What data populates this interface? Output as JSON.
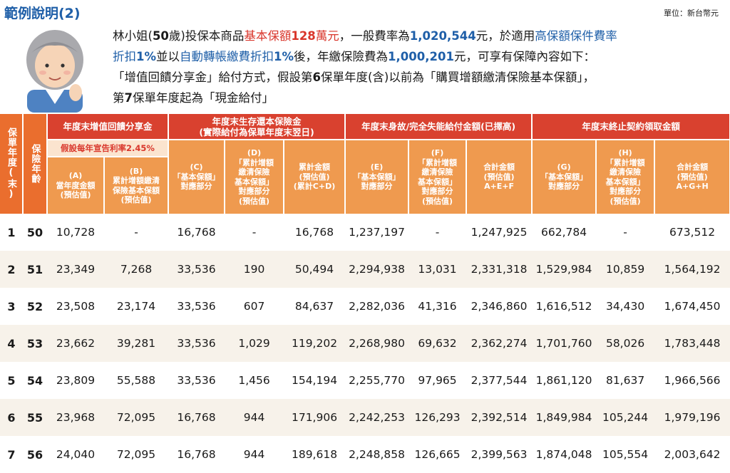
{
  "header": {
    "title": "範例說明(2)",
    "unit": "單位：新台幣元"
  },
  "intro": {
    "p1": "林小姐(",
    "age": "50",
    "p2": "歲)投保本商品",
    "red1": "基本保額",
    "amount": "128",
    "red2": "萬元",
    "p3": "，一般費率為",
    "rate_amount": "1,020,544",
    "p4": "元，於適用",
    "blue1": "高保額保件費率",
    "line2_a": "折扣",
    "pct1": "1%",
    "line2_b": "並以",
    "blue2": "自動轉帳繳費折扣",
    "pct2": "1%",
    "line2_c": "後，年繳保險費為",
    "premium": "1,000,201",
    "line2_d": "元，可享有保障內容如下：",
    "line3_a": "「增值回饋分享金」給付方式，假設第",
    "yr6": "6",
    "line3_b": "保單年度(含)以前為「購買增額繳清保險基本保額」，",
    "line4_a": "第",
    "yr7": "7",
    "line4_b": "保單年度起為「現金給付」"
  },
  "table": {
    "side_headers": {
      "year": "保單年度(末)",
      "age": "保險年齡"
    },
    "groups": {
      "g1": "年度末增值回饋分享金",
      "g2_line1": "年度末生存還本保險金",
      "g2_line2": "(實際給付為保單年度末翌日)",
      "g3": "年度末身故/完全失能給付金額(已擇高)",
      "g4": "年度末終止契約領取金額"
    },
    "rate_note": "假設每年宣告利率2.45%",
    "cols": {
      "A": "(A)\n當年度金額\n(預估值)",
      "B": "(B)\n累計增額繳清\n保險基本保額\n(預估值)",
      "C": "(C)\n「基本保額」\n對應部分",
      "D": "(D)\n「累計增額\n繳清保險\n基本保額」\n對應部分\n(預估值)",
      "CD": "累計金額\n(預估值)\n(累計C+D)",
      "E": "(E)\n「基本保額」\n對應部分",
      "F": "(F)\n「累計增額\n繳清保險\n基本保額」\n對應部分\n(預估值)",
      "AEF": "合計金額\n(預估值)\nA+E+F",
      "G": "(G)\n「基本保額」\n對應部分",
      "H": "(H)\n「累計增額\n繳清保險\n基本保額」\n對應部分\n(預估值)",
      "AGH": "合計金額\n(預估值)\nA+G+H"
    },
    "rows": [
      [
        "1",
        "50",
        "10,728",
        "-",
        "16,768",
        "-",
        "16,768",
        "1,237,197",
        "-",
        "1,247,925",
        "662,784",
        "-",
        "673,512"
      ],
      [
        "2",
        "51",
        "23,349",
        "7,268",
        "33,536",
        "190",
        "50,494",
        "2,294,938",
        "13,031",
        "2,331,318",
        "1,529,984",
        "10,859",
        "1,564,192"
      ],
      [
        "3",
        "52",
        "23,508",
        "23,174",
        "33,536",
        "607",
        "84,637",
        "2,282,036",
        "41,316",
        "2,346,860",
        "1,616,512",
        "34,430",
        "1,674,450"
      ],
      [
        "4",
        "53",
        "23,662",
        "39,281",
        "33,536",
        "1,029",
        "119,202",
        "2,268,980",
        "69,632",
        "2,362,274",
        "1,701,760",
        "58,026",
        "1,783,448"
      ],
      [
        "5",
        "54",
        "23,809",
        "55,588",
        "33,536",
        "1,456",
        "154,194",
        "2,255,770",
        "97,965",
        "2,377,544",
        "1,861,120",
        "81,637",
        "1,966,566"
      ],
      [
        "6",
        "55",
        "23,968",
        "72,095",
        "16,768",
        "944",
        "171,906",
        "2,242,253",
        "126,293",
        "2,392,514",
        "1,849,984",
        "105,244",
        "1,979,196"
      ],
      [
        "7",
        "56",
        "24,040",
        "72,095",
        "16,768",
        "944",
        "189,618",
        "2,248,858",
        "126,665",
        "2,399,563",
        "1,874,048",
        "105,554",
        "2,003,642"
      ]
    ]
  }
}
